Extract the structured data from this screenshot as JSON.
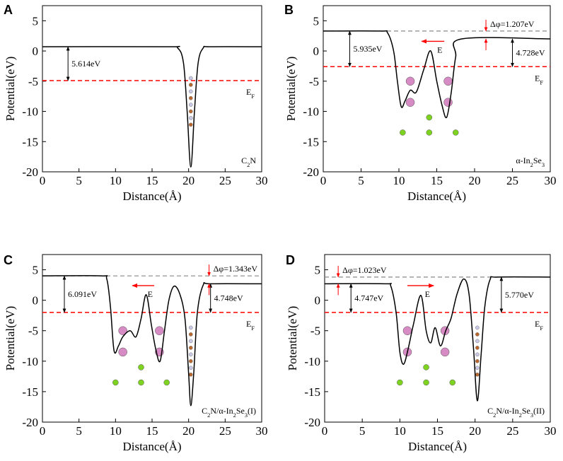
{
  "chart_data": [
    {
      "type": "line",
      "title": "A",
      "xlabel": "Distance(Å)",
      "ylabel": "Potential(eV)",
      "xlim": [
        0,
        30
      ],
      "ylim": [
        -20,
        7.5
      ],
      "xticks": [
        0,
        5,
        10,
        15,
        20,
        25,
        30
      ],
      "yticks": [
        5,
        0,
        -5,
        -10,
        -15,
        -20
      ],
      "series": [
        {
          "color": "#000000",
          "x": [
            0,
            17,
            18.5,
            19.3,
            19.8,
            20.3,
            20.8,
            21.3,
            22,
            23,
            30
          ],
          "values": [
            0.7,
            0.7,
            0.5,
            -2,
            -10,
            -19.2,
            -10,
            -2,
            0.5,
            0.7,
            0.7
          ]
        }
      ],
      "levels": [
        {
          "value": -4.9,
          "color": "#ff0000"
        }
      ],
      "gaps": [
        {
          "x": 3.5,
          "from": 0.7,
          "to": -4.9,
          "label": "5.614eV"
        }
      ],
      "fermi_label": [
        "E",
        "F"
      ],
      "structure_label": [
        "C",
        "2",
        "N"
      ]
    },
    {
      "type": "line",
      "title": "B",
      "xlabel": "Distance(Å)",
      "ylabel": "Potential(eV)",
      "xlim": [
        0,
        30
      ],
      "ylim": [
        -20,
        7.5
      ],
      "xticks": [
        0,
        5,
        10,
        15,
        20,
        25,
        30
      ],
      "yticks": [
        5,
        0,
        -5,
        -10,
        -15,
        -20
      ],
      "series": [
        {
          "color": "#000000",
          "x": [
            0,
            7.5,
            8.5,
            9.3,
            9.8,
            10.3,
            10.8,
            11.5,
            12.3,
            13.3,
            14.2,
            15,
            15.7,
            16.3,
            16.9,
            17.5,
            18.3,
            30
          ],
          "values": [
            3.3,
            3.3,
            3,
            0,
            -5,
            -9.2,
            -8.3,
            -6.5,
            -6.8,
            -3,
            0,
            -5,
            -9,
            -11,
            -7,
            -1,
            2,
            2
          ]
        }
      ],
      "levels": [
        {
          "value": 3.3,
          "color": "#888888"
        },
        {
          "value": -2.6,
          "color": "#ff0000"
        }
      ],
      "gaps": [
        {
          "x": 3.5,
          "from": 3.3,
          "to": -2.6,
          "label": "5.935eV"
        },
        {
          "x": 25,
          "from": 2,
          "to": -2.6,
          "label": "4.728eV"
        }
      ],
      "work_function_difference": {
        "x": 21.5,
        "from": 3.3,
        "to": 2,
        "label": "Δφ=1.207eV"
      },
      "field": {
        "x1": 16,
        "x2": 13,
        "y": 1.6,
        "label": "E"
      },
      "fermi_label": [
        "E",
        "F"
      ],
      "structure_label": [
        "α-In",
        "2",
        "Se",
        "3"
      ]
    },
    {
      "type": "line",
      "title": "C",
      "xlabel": "Distance(Å)",
      "ylabel": "Potential(eV)",
      "xlim": [
        0,
        30
      ],
      "ylim": [
        -20,
        7.5
      ],
      "xticks": [
        0,
        5,
        10,
        15,
        20,
        25,
        30
      ],
      "yticks": [
        5,
        0,
        -5,
        -10,
        -15,
        -20
      ],
      "series": [
        {
          "color": "#000000",
          "x": [
            0,
            8,
            8.8,
            9.3,
            9.8,
            10.4,
            11,
            12,
            12.8,
            13.5,
            14.2,
            14.9,
            15.5,
            16.1,
            16.7,
            17.3,
            18,
            18.8,
            19.5,
            20,
            20.3,
            20.7,
            21.2,
            22,
            23,
            30
          ],
          "values": [
            4,
            4,
            3.5,
            -1,
            -8.3,
            -7.5,
            -6,
            -5,
            -6,
            -3,
            0.9,
            -4,
            -8,
            -10,
            -5,
            0,
            2.3,
            1,
            -3,
            -12,
            -17.3,
            -12,
            -2,
            2.5,
            2.7,
            2.7
          ]
        }
      ],
      "levels": [
        {
          "value": 4,
          "color": "#888888"
        },
        {
          "value": -2,
          "color": "#ff0000"
        }
      ],
      "gaps": [
        {
          "x": 3,
          "from": 4,
          "to": -2,
          "label": "6.091eV"
        },
        {
          "x": 23,
          "from": 2.7,
          "to": -2,
          "label": "4.748eV"
        }
      ],
      "work_function_difference": {
        "x": 22.8,
        "from": 4,
        "to": 2.7,
        "label": "Δφ=1.343eV"
      },
      "field": {
        "x1": 15.3,
        "x2": 12.3,
        "y": 2.4,
        "label": "E"
      },
      "fermi_label": [
        "E",
        "F"
      ],
      "structure_label": [
        "C",
        "2",
        "N/α-In",
        "2",
        "Se",
        "3",
        "(I)"
      ]
    },
    {
      "type": "line",
      "title": "D",
      "xlabel": "Distance(Å)",
      "ylabel": "Potential(eV)",
      "xlim": [
        0,
        30
      ],
      "ylim": [
        -20,
        7.5
      ],
      "xticks": [
        0,
        5,
        10,
        15,
        20,
        25,
        30
      ],
      "yticks": [
        5,
        0,
        -5,
        -10,
        -15,
        -20
      ],
      "series": [
        {
          "color": "#000000",
          "x": [
            0,
            8,
            8.8,
            9.5,
            10,
            10.5,
            11.1,
            11.8,
            12.8,
            13.5,
            14.1,
            14.7,
            15.4,
            16.1,
            16.8,
            17.6,
            18.5,
            19.2,
            19.8,
            20.3,
            20.8,
            21.3,
            22,
            23,
            30
          ],
          "values": [
            2.7,
            2.7,
            2.3,
            -2,
            -8.5,
            -10.5,
            -8,
            -4,
            0.8,
            -5,
            -7,
            -4.5,
            -7.5,
            -5,
            -3,
            1,
            3.5,
            1,
            -8,
            -16.5,
            -9,
            -1,
            3.4,
            3.8,
            3.8
          ]
        }
      ],
      "levels": [
        {
          "value": 3.8,
          "color": "#888888"
        },
        {
          "value": -2,
          "color": "#ff0000"
        }
      ],
      "gaps": [
        {
          "x": 3.5,
          "from": 2.7,
          "to": -2,
          "label": "4.747eV"
        },
        {
          "x": 23.5,
          "from": 3.8,
          "to": -2,
          "label": "5.770eV"
        }
      ],
      "work_function_difference": {
        "x": 1.8,
        "from": 3.8,
        "to": 2.7,
        "label": "Δφ=1.023eV"
      },
      "field": {
        "x1": 11,
        "x2": 14.5,
        "y": 2.4,
        "label": "E"
      },
      "fermi_label": [
        "E",
        "F"
      ],
      "structure_label": [
        "C",
        "2",
        "N/α-In",
        "2",
        "Se",
        "3",
        "(II)"
      ]
    }
  ]
}
